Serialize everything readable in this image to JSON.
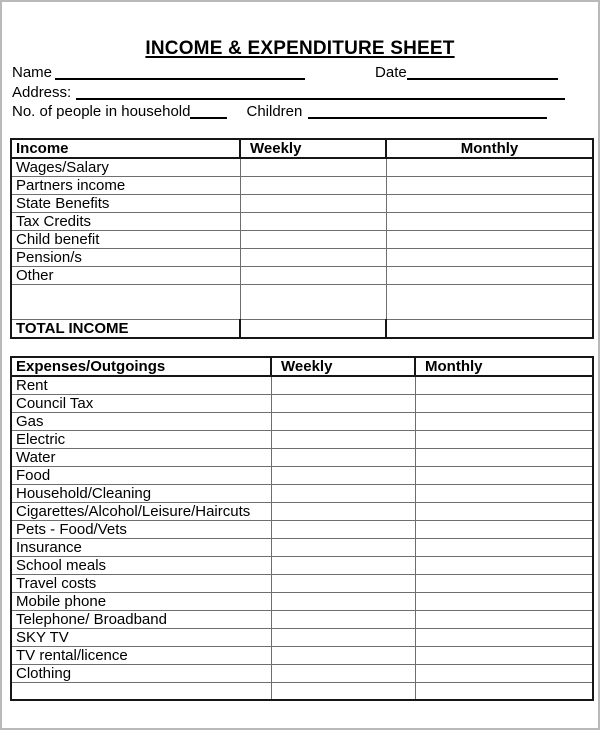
{
  "page": {
    "title": "INCOME & EXPENDITURE SHEET"
  },
  "form": {
    "name_label": "Name",
    "date_label": "Date",
    "address_label": "Address:",
    "household_label": "No. of people in household",
    "children_label": "Children"
  },
  "income_table": {
    "headers": {
      "category": "Income",
      "weekly": "Weekly",
      "monthly": "Monthly"
    },
    "rows": [
      "Wages/Salary",
      "Partners income",
      "State Benefits",
      "Tax Credits",
      "Child benefit",
      "Pension/s",
      "Other",
      ""
    ],
    "total_label": "TOTAL INCOME"
  },
  "expenses_table": {
    "headers": {
      "category": "Expenses/Outgoings",
      "weekly": "Weekly",
      "monthly": "Monthly"
    },
    "rows": [
      "Rent",
      "Council Tax",
      "Gas",
      "Electric",
      "Water",
      "Food",
      "Household/Cleaning",
      "Cigarettes/Alcohol/Leisure/Haircuts",
      "Pets - Food/Vets",
      "Insurance",
      "School meals",
      "Travel costs",
      "Mobile phone",
      "Telephone/ Broadband",
      "SKY TV",
      "TV rental/licence",
      "Clothing"
    ]
  }
}
